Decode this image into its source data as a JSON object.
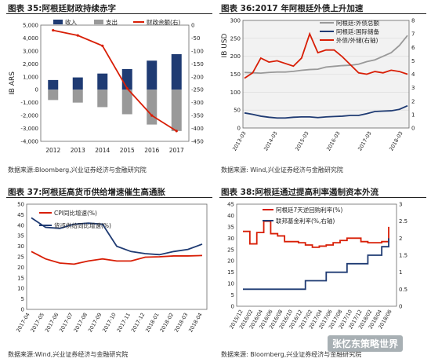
{
  "charts": [
    {
      "title_label": "图表 35:阿根廷财政持续赤字",
      "source": "数据来源:Bloomberg,兴业证券经济与金融研究院",
      "chart_data": {
        "type": "bar",
        "ylabel": "IB ARS",
        "categories": [
          "2012",
          "2013",
          "2014",
          "2015",
          "2016",
          "2017"
        ],
        "ylim": [
          -4000,
          5000
        ],
        "y2lim": [
          -450,
          0
        ],
        "yticks": [
          "5,000",
          "4,000",
          "3,000",
          "2,000",
          "1,000",
          "0",
          "-1,000",
          "-2,000",
          "-3,000",
          "-4,000"
        ],
        "y2ticks": [
          "0",
          "-50",
          "-100",
          "-150",
          "-200",
          "-250",
          "-300",
          "-350",
          "-400",
          "-450"
        ],
        "series": [
          {
            "name": "收入",
            "type": "bar",
            "color": "#1f3b73",
            "values": [
              750,
              950,
              1250,
              1600,
              2250,
              2750
            ]
          },
          {
            "name": "支出",
            "type": "bar",
            "color": "#999999",
            "values": [
              -800,
              -1000,
              -1350,
              -1900,
              -2700,
              -3200
            ]
          },
          {
            "name": "财政余额(右)",
            "type": "line",
            "axis": "right",
            "color": "#d81e06",
            "values": [
              -20,
              -40,
              -80,
              -245,
              -350,
              -410
            ]
          }
        ],
        "legend": "top"
      }
    },
    {
      "title_label": "图表 36:2017 年阿根廷外债上升加速",
      "source": "数据来源: Wind,兴业证券经济与金融研究院",
      "chart_data": {
        "type": "line",
        "ylabel": "IB USD",
        "x_ticks": [
          "2013-03",
          "2014-03",
          "2015-03",
          "2016-03",
          "2017-03",
          "2018-03"
        ],
        "ylim": [
          0,
          300
        ],
        "yticks": [
          "300",
          "250",
          "200",
          "150",
          "100",
          "50",
          "0"
        ],
        "y2lim": [
          0,
          8
        ],
        "y2ticks": [
          "8",
          "7",
          "6",
          "5",
          "4",
          "3",
          "2",
          "1",
          "0"
        ],
        "series": [
          {
            "name": "阿根廷:外债总额",
            "color": "#999999",
            "axis": "left",
            "values": [
              155,
              154,
              153,
              155,
              156,
              156,
              158,
              161,
              163,
              164,
              170,
              172,
              174,
              175,
              178,
              185,
              190,
              200,
              210,
              230,
              258
            ]
          },
          {
            "name": "阿根廷:国际储备",
            "color": "#1f3b73",
            "axis": "left",
            "values": [
              42,
              38,
              33,
              30,
              28,
              28,
              30,
              31,
              31,
              29,
              31,
              32,
              33,
              35,
              35,
              40,
              46,
              47,
              48,
              52,
              62
            ]
          },
          {
            "name": "外债/外储(右轴)",
            "color": "#d81e06",
            "axis": "right",
            "values": [
              3.7,
              4.1,
              5.2,
              4.9,
              5.0,
              4.8,
              4.6,
              5.2,
              7.0,
              5.6,
              5.8,
              5.8,
              5.3,
              4.7,
              4.1,
              4.0,
              4.2,
              4.1,
              4.3,
              4.2,
              4.0
            ]
          }
        ],
        "legend": "top-right"
      }
    },
    {
      "title_label": "图表 37:阿根廷高货币供给增速催生高通胀",
      "source": "数据来源:Wind,兴业证券经济与金融研究院",
      "chart_data": {
        "type": "line",
        "x_ticks": [
          "2017-04",
          "2017-05",
          "2017-06",
          "2017-07",
          "2017-08",
          "2017-09",
          "2017-10",
          "2017-11",
          "2017-12",
          "2018-01",
          "2018-02",
          "2018-03",
          "2018-04"
        ],
        "ylim": [
          0,
          50
        ],
        "yticks": [
          "50",
          "45",
          "40",
          "35",
          "30",
          "25",
          "20",
          "15",
          "10",
          "5",
          "0"
        ],
        "series": [
          {
            "name": "CPI同比增速(%)",
            "color": "#d81e06",
            "values": [
              27.5,
              24.0,
              22.0,
              21.5,
              23.0,
              24.0,
              23.0,
              23.0,
              24.8,
              25.0,
              25.4,
              25.4,
              25.6
            ]
          },
          {
            "name": "货币供给同比增速(%)",
            "color": "#1f3b73",
            "values": [
              43.5,
              39.0,
              38.5,
              40.5,
              41.0,
              40.5,
              30.0,
              27.5,
              26.5,
              26.0,
              27.5,
              28.5,
              31.0
            ]
          }
        ],
        "legend": "top-left"
      }
    },
    {
      "title_label": "图表 38:阿根廷通过提高利率遏制资本外流",
      "source": "数据来源: Bloomberg,兴业证券经济与金融研究院",
      "chart_data": {
        "type": "line",
        "x_ticks": [
          "2015/12",
          "2016/02",
          "2016/04",
          "2016/06",
          "2016/08",
          "2016/10",
          "2016/12",
          "2017/02",
          "2017/04",
          "2017/06",
          "2017/08",
          "2017/10",
          "2017/12",
          "2018/02",
          "2018/04",
          "2018/06"
        ],
        "ylim": [
          0,
          45
        ],
        "yticks": [
          "45",
          "40",
          "35",
          "30",
          "25",
          "20",
          "15",
          "10",
          "5",
          "0"
        ],
        "y2lim": [
          0,
          3
        ],
        "y2ticks": [
          "3",
          "2.5",
          "2",
          "1.5",
          "1",
          "0.5",
          "0"
        ],
        "series": [
          {
            "name": "阿根廷7天逆回购利率(%)",
            "color": "#d81e06",
            "axis": "left",
            "step": true,
            "values": [
              33,
              27.5,
              32.5,
              37.5,
              32,
              31,
              28.5,
              28.5,
              28,
              27,
              26,
              26.5,
              27,
              28,
              29,
              30,
              30,
              28.5,
              28,
              28,
              28.5,
              35
            ]
          },
          {
            "name": "联邦基金利率(%,右轴)",
            "color": "#1f3b73",
            "axis": "right",
            "step": true,
            "values": [
              0.5,
              0.5,
              0.5,
              0.5,
              0.5,
              0.5,
              0.5,
              0.5,
              0.5,
              0.75,
              0.75,
              0.75,
              1.0,
              1.0,
              1.0,
              1.25,
              1.25,
              1.25,
              1.5,
              1.5,
              1.75,
              2.0
            ]
          }
        ],
        "legend": "top-center"
      }
    }
  ],
  "watermark": "张忆东策略世界"
}
